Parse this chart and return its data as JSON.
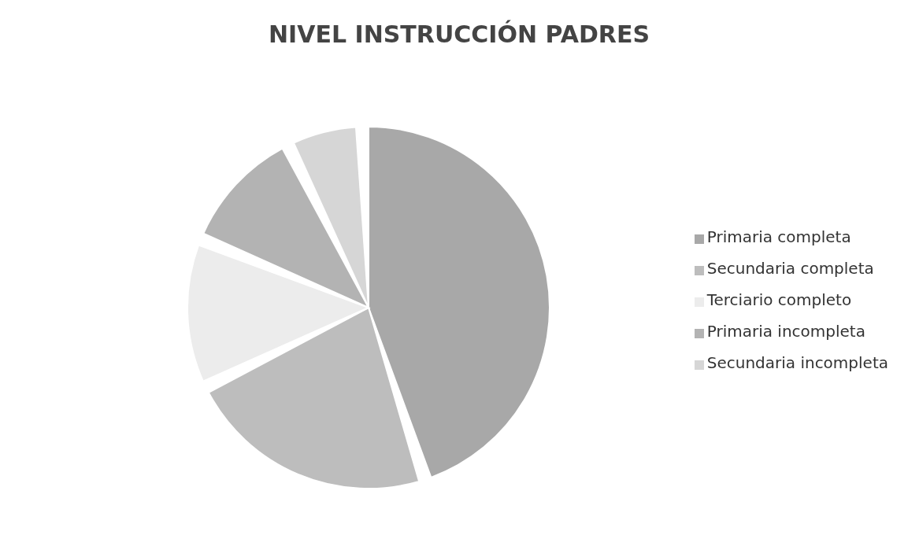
{
  "chart_data": {
    "type": "pie",
    "title": "NIVEL INSTRUCCIÓN PADRES",
    "categories": [
      "Primaria completa",
      "Secundaria completa",
      "Terciario completo",
      "Primaria incompleta",
      "Secundaria incompleta"
    ],
    "values": [
      47,
      23,
      13,
      11,
      6
    ],
    "colors": [
      "#a8a8a8",
      "#bdbdbd",
      "#ececec",
      "#b3b3b3",
      "#d6d6d6"
    ],
    "legend": "right"
  }
}
